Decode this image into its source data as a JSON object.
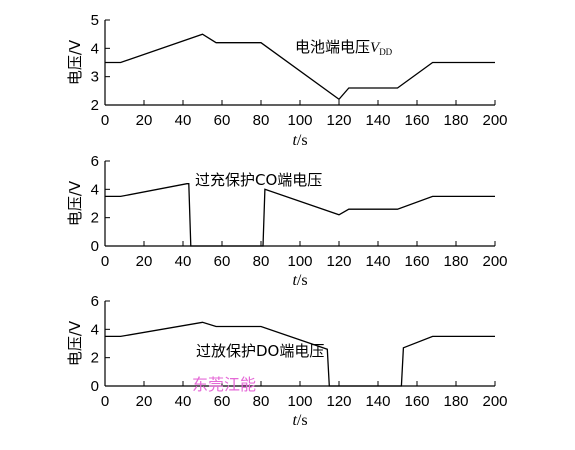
{
  "chart_data": [
    {
      "type": "line",
      "ylabel": "电压/V",
      "xlabel": "t/s",
      "xlim": [
        0,
        200
      ],
      "ylim": [
        2,
        5
      ],
      "xticks": [
        0,
        20,
        40,
        60,
        80,
        100,
        120,
        140,
        160,
        180,
        200
      ],
      "yticks": [
        2,
        3,
        4,
        5
      ],
      "annotation": {
        "text": "电池端电压",
        "var": "V",
        "sub": "DD"
      },
      "series": [
        {
          "x": [
            0,
            8,
            50,
            57,
            80,
            120,
            125,
            150,
            168,
            200
          ],
          "y": [
            3.5,
            3.5,
            4.5,
            4.2,
            4.2,
            2.2,
            2.6,
            2.6,
            3.5,
            3.5
          ]
        }
      ]
    },
    {
      "type": "line",
      "ylabel": "电压/V",
      "xlabel": "t/s",
      "xlim": [
        0,
        200
      ],
      "ylim": [
        0,
        6
      ],
      "xticks": [
        0,
        20,
        40,
        60,
        80,
        100,
        120,
        140,
        160,
        180,
        200
      ],
      "yticks": [
        0,
        2,
        4,
        6
      ],
      "annotation": {
        "text": "过充保护CO端电压"
      },
      "series": [
        {
          "x": [
            0,
            8,
            42,
            43,
            44,
            80,
            81,
            82,
            120,
            125,
            150,
            168,
            200
          ],
          "y": [
            3.5,
            3.5,
            4.4,
            4.4,
            0,
            0,
            0,
            4.0,
            2.2,
            2.6,
            2.6,
            3.5,
            3.5
          ]
        }
      ]
    },
    {
      "type": "line",
      "ylabel": "电压/V",
      "xlabel": "t/s",
      "xlim": [
        0,
        200
      ],
      "ylim": [
        0,
        6
      ],
      "xticks": [
        0,
        20,
        40,
        60,
        80,
        100,
        120,
        140,
        160,
        180,
        200
      ],
      "yticks": [
        0,
        2,
        4,
        6
      ],
      "annotation": {
        "text": "过放保护DO端电压"
      },
      "series": [
        {
          "x": [
            0,
            8,
            50,
            57,
            80,
            114,
            115,
            152,
            153,
            168,
            200
          ],
          "y": [
            3.5,
            3.5,
            4.5,
            4.2,
            4.2,
            2.6,
            0,
            0,
            2.7,
            3.5,
            3.5
          ]
        }
      ]
    }
  ],
  "watermark": "东莞江能"
}
